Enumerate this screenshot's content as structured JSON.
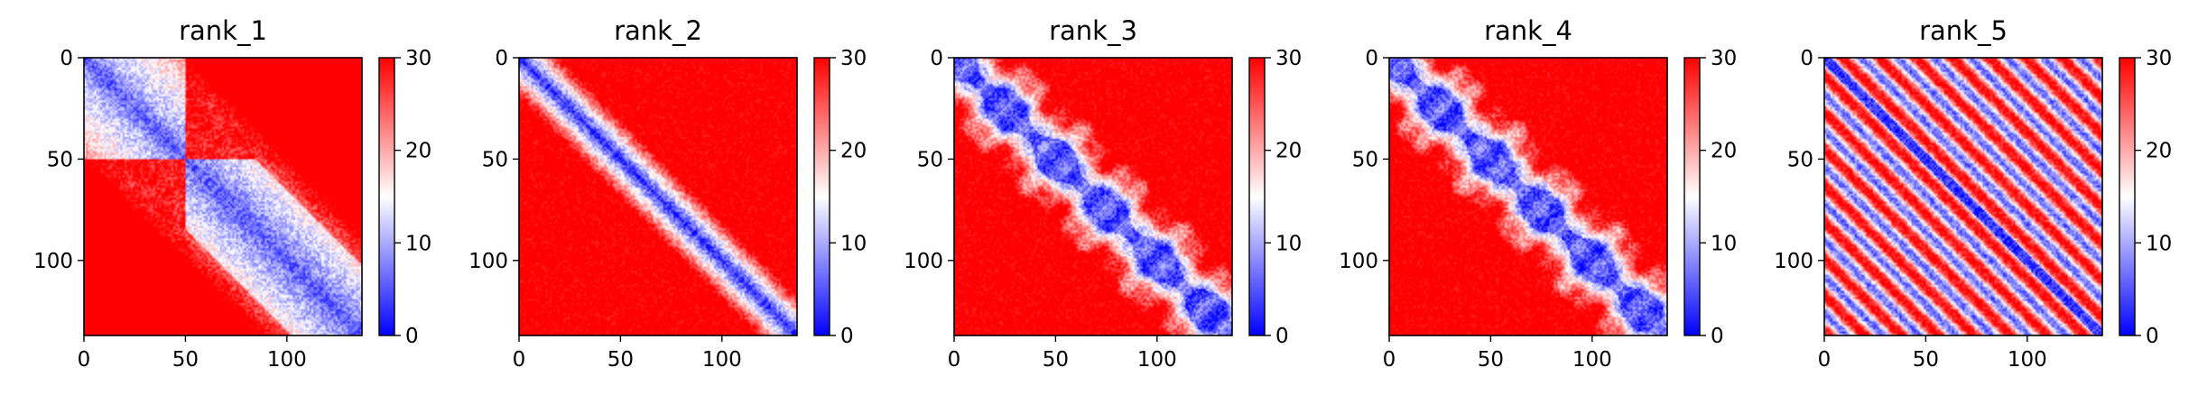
{
  "chart_data": [
    {
      "type": "heatmap",
      "title": "rank_1",
      "size": 137,
      "x_ticks": [
        "0",
        "50",
        "100"
      ],
      "y_ticks": [
        "0",
        "50",
        "100"
      ],
      "xlim": [
        0,
        137
      ],
      "ylim": [
        0,
        137
      ],
      "colorbar": {
        "ticks": [
          "0",
          "10",
          "20",
          "30"
        ],
        "range": [
          0,
          30
        ],
        "colormap": "bwr",
        "colors": [
          "#0000ff",
          "#ffffff",
          "#ff0000"
        ]
      },
      "pattern": "two-domain"
    },
    {
      "type": "heatmap",
      "title": "rank_2",
      "size": 137,
      "x_ticks": [
        "0",
        "50",
        "100"
      ],
      "y_ticks": [
        "0",
        "50",
        "100"
      ],
      "xlim": [
        0,
        137
      ],
      "ylim": [
        0,
        137
      ],
      "colorbar": {
        "ticks": [
          "0",
          "10",
          "20",
          "30"
        ],
        "range": [
          0,
          30
        ],
        "colormap": "bwr",
        "colors": [
          "#0000ff",
          "#ffffff",
          "#ff0000"
        ]
      },
      "pattern": "narrow-diagonal"
    },
    {
      "type": "heatmap",
      "title": "rank_3",
      "size": 137,
      "x_ticks": [
        "0",
        "50",
        "100"
      ],
      "y_ticks": [
        "0",
        "50",
        "100"
      ],
      "xlim": [
        0,
        137
      ],
      "ylim": [
        0,
        137
      ],
      "colorbar": {
        "ticks": [
          "0",
          "10",
          "20",
          "30"
        ],
        "range": [
          0,
          30
        ],
        "colormap": "bwr",
        "colors": [
          "#0000ff",
          "#ffffff",
          "#ff0000"
        ]
      },
      "pattern": "beaded-diagonal"
    },
    {
      "type": "heatmap",
      "title": "rank_4",
      "size": 137,
      "x_ticks": [
        "0",
        "50",
        "100"
      ],
      "y_ticks": [
        "0",
        "50",
        "100"
      ],
      "xlim": [
        0,
        137
      ],
      "ylim": [
        0,
        137
      ],
      "colorbar": {
        "ticks": [
          "0",
          "10",
          "20",
          "30"
        ],
        "range": [
          0,
          30
        ],
        "colormap": "bwr",
        "colors": [
          "#0000ff",
          "#ffffff",
          "#ff0000"
        ]
      },
      "pattern": "beaded-diagonal"
    },
    {
      "type": "heatmap",
      "title": "rank_5",
      "size": 137,
      "x_ticks": [
        "0",
        "50",
        "100"
      ],
      "y_ticks": [
        "0",
        "50",
        "100"
      ],
      "xlim": [
        0,
        137
      ],
      "ylim": [
        0,
        137
      ],
      "colorbar": {
        "ticks": [
          "0",
          "10",
          "20",
          "30"
        ],
        "range": [
          0,
          30
        ],
        "colormap": "bwr",
        "colors": [
          "#0000ff",
          "#ffffff",
          "#ff0000"
        ]
      },
      "pattern": "helical-stripes"
    }
  ]
}
